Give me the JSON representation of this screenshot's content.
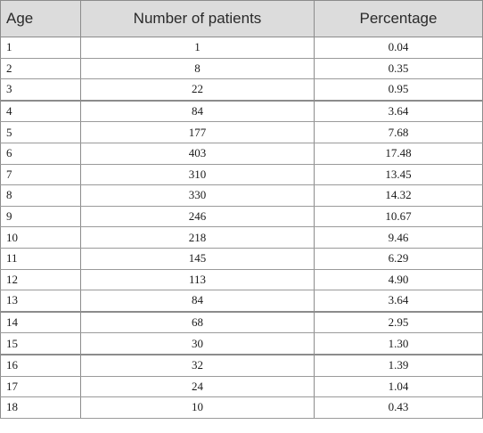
{
  "table": {
    "headers": [
      "Age",
      "Number of patients",
      "Percentage"
    ],
    "rows": [
      [
        "1",
        "1",
        "0.04"
      ],
      [
        "2",
        "8",
        "0.35"
      ],
      [
        "3",
        "22",
        "0.95"
      ],
      [
        "4",
        "84",
        "3.64"
      ],
      [
        "5",
        "177",
        "7.68"
      ],
      [
        "6",
        "403",
        "17.48"
      ],
      [
        "7",
        "310",
        "13.45"
      ],
      [
        "8",
        "330",
        "14.32"
      ],
      [
        "9",
        "246",
        "10.67"
      ],
      [
        "10",
        "218",
        "9.46"
      ],
      [
        "11",
        "145",
        "6.29"
      ],
      [
        "12",
        "113",
        "4.90"
      ],
      [
        "13",
        "84",
        "3.64"
      ],
      [
        "14",
        "68",
        "2.95"
      ],
      [
        "15",
        "30",
        "1.30"
      ],
      [
        "16",
        "32",
        "1.39"
      ],
      [
        "17",
        "24",
        "1.04"
      ],
      [
        "18",
        "10",
        "0.43"
      ]
    ]
  }
}
